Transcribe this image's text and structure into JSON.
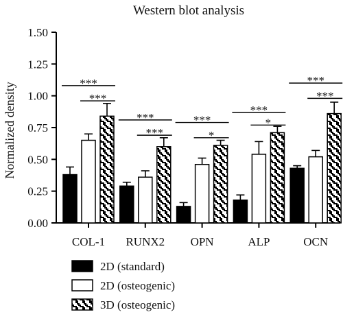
{
  "chart_data": {
    "type": "bar",
    "title": "Western blot analysis",
    "xlabel": "",
    "ylabel": "Normalized density",
    "ylim": [
      0,
      1.5
    ],
    "yticks": [
      "0.00",
      "0.25",
      "0.50",
      "0.75",
      "1.00",
      "1.25",
      "1.50"
    ],
    "categories": [
      "COL-1",
      "RUNX2",
      "OPN",
      "ALP",
      "OCN"
    ],
    "series": [
      {
        "name": "2D (standard)",
        "fill": "solid",
        "color": "#000000",
        "values": [
          0.38,
          0.29,
          0.13,
          0.18,
          0.43
        ],
        "errors": [
          0.06,
          0.03,
          0.03,
          0.04,
          0.02
        ]
      },
      {
        "name": "2D (osteogenic)",
        "fill": "open",
        "color": "#ffffff",
        "values": [
          0.65,
          0.36,
          0.46,
          0.54,
          0.52
        ],
        "errors": [
          0.05,
          0.05,
          0.05,
          0.1,
          0.05
        ]
      },
      {
        "name": "3D (osteogenic)",
        "fill": "hatched",
        "color": "#000000",
        "values": [
          0.84,
          0.6,
          0.61,
          0.71,
          0.86
        ],
        "errors": [
          0.1,
          0.07,
          0.04,
          0.05,
          0.09
        ]
      }
    ],
    "significance": [
      {
        "category": 0,
        "from": 0,
        "to": 2,
        "label": "***",
        "y": 1.08
      },
      {
        "category": 0,
        "from": 1,
        "to": 2,
        "label": "***",
        "y": 0.96
      },
      {
        "category": 1,
        "from": 0,
        "to": 2,
        "label": "***",
        "y": 0.81
      },
      {
        "category": 1,
        "from": 1,
        "to": 2,
        "label": "***",
        "y": 0.69
      },
      {
        "category": 2,
        "from": 0,
        "to": 2,
        "label": "***",
        "y": 0.79
      },
      {
        "category": 2,
        "from": 1,
        "to": 2,
        "label": "*",
        "y": 0.67
      },
      {
        "category": 3,
        "from": 0,
        "to": 2,
        "label": "***",
        "y": 0.87
      },
      {
        "category": 3,
        "from": 1,
        "to": 2,
        "label": "*",
        "y": 0.77
      },
      {
        "category": 4,
        "from": 0,
        "to": 2,
        "label": "***",
        "y": 1.1
      },
      {
        "category": 4,
        "from": 1,
        "to": 2,
        "label": "***",
        "y": 0.98
      }
    ],
    "legend_position": "bottom-left",
    "grid": false
  }
}
